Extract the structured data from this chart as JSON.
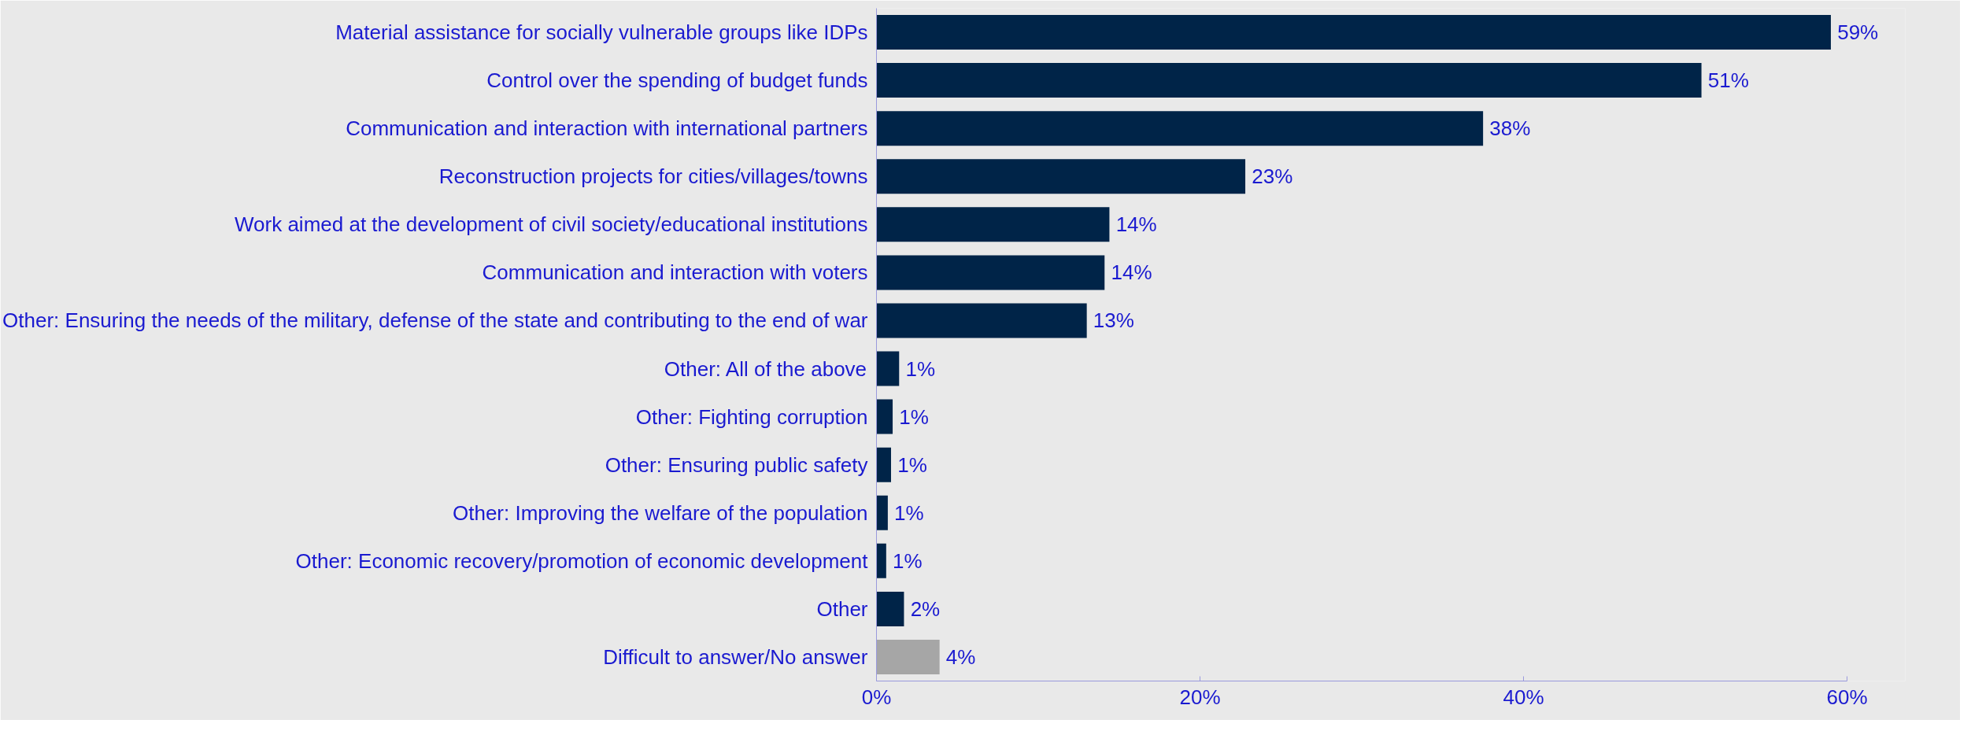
{
  "chart_data": {
    "type": "bar",
    "orientation": "horizontal",
    "categories": [
      "Material assistance for socially vulnerable groups like IDPs",
      "Control over the spending of budget funds",
      "Communication and interaction with international partners",
      "Reconstruction projects for cities/villages/towns",
      "Work aimed at the development of civil society/educational institutions",
      "Communication and interaction with voters",
      "Other: Ensuring the needs of the military, defense of the state and contributing to the end of war",
      "Other: All of the above",
      "Other: Fighting corruption",
      "Other: Ensuring public safety",
      "Other: Improving the welfare of the population",
      "Other: Economic recovery/promotion of economic development",
      "Other",
      "Difficult to answer/No answer"
    ],
    "values": [
      59.0,
      51.0,
      37.5,
      22.8,
      14.4,
      14.1,
      13.0,
      1.4,
      1.0,
      0.9,
      0.7,
      0.6,
      1.7,
      3.9
    ],
    "value_labels": [
      "59%",
      "51%",
      "38%",
      "23%",
      "14%",
      "14%",
      "13%",
      "1%",
      "1%",
      "1%",
      "1%",
      "1%",
      "2%",
      "4%"
    ],
    "colors": [
      "#002448",
      "#002448",
      "#002448",
      "#002448",
      "#002448",
      "#002448",
      "#002448",
      "#002448",
      "#002448",
      "#002448",
      "#002448",
      "#002448",
      "#002448",
      "#a6a6a6"
    ],
    "xlim": [
      0,
      60
    ],
    "xticks": [
      {
        "value": 0,
        "label": "0%"
      },
      {
        "value": 20,
        "label": "20%"
      },
      {
        "value": 40,
        "label": "40%"
      },
      {
        "value": 60,
        "label": "60%"
      }
    ]
  }
}
